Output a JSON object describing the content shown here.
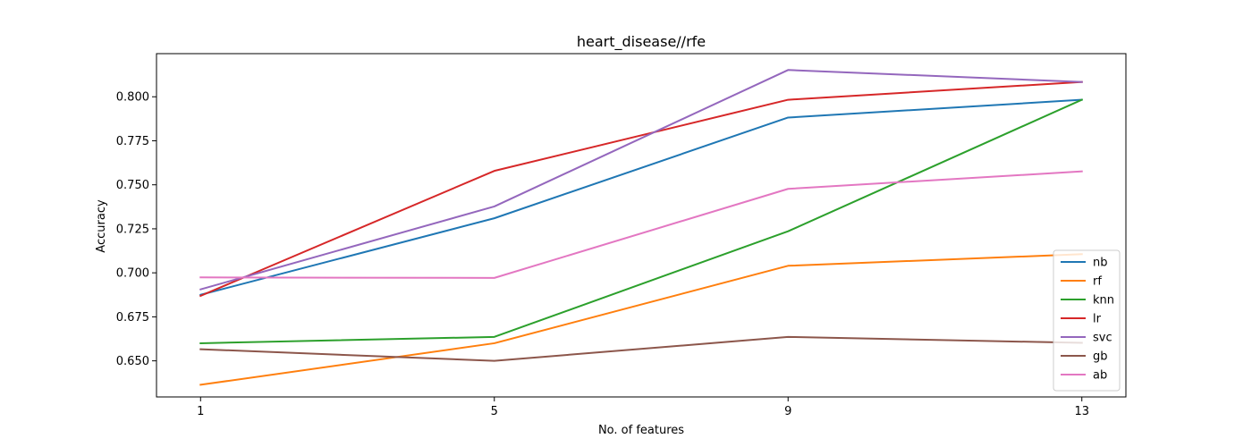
{
  "chart_data": {
    "type": "line",
    "title": "heart_disease//rfe",
    "xlabel": "No. of features",
    "ylabel": "Accuracy",
    "x": [
      1,
      5,
      9,
      13
    ],
    "xticks": [
      "1",
      "5",
      "9",
      "13"
    ],
    "yticks": [
      "0.650",
      "0.675",
      "0.700",
      "0.725",
      "0.750",
      "0.775",
      "0.800"
    ],
    "xlim": [
      0.4,
      13.6
    ],
    "ylim": [
      0.6295,
      0.8245
    ],
    "legend_position": "lower-right",
    "grid": false,
    "series": [
      {
        "name": "nb",
        "color": "#1f77b4",
        "values": [
          0.6875,
          0.731,
          0.7882,
          0.7983
        ]
      },
      {
        "name": "rf",
        "color": "#ff7f0e",
        "values": [
          0.6364,
          0.66,
          0.704,
          0.7106
        ]
      },
      {
        "name": "knn",
        "color": "#2ca02c",
        "values": [
          0.66,
          0.6636,
          0.7236,
          0.7983
        ]
      },
      {
        "name": "lr",
        "color": "#d62728",
        "values": [
          0.6869,
          0.7579,
          0.7983,
          0.8084
        ]
      },
      {
        "name": "svc",
        "color": "#9467bd",
        "values": [
          0.6906,
          0.7377,
          0.8152,
          0.8084
        ]
      },
      {
        "name": "gb",
        "color": "#8c564b",
        "values": [
          0.6566,
          0.65,
          0.6636,
          0.6602
        ]
      },
      {
        "name": "ab",
        "color": "#e377c2",
        "values": [
          0.6974,
          0.6971,
          0.7477,
          0.7576
        ]
      }
    ]
  }
}
